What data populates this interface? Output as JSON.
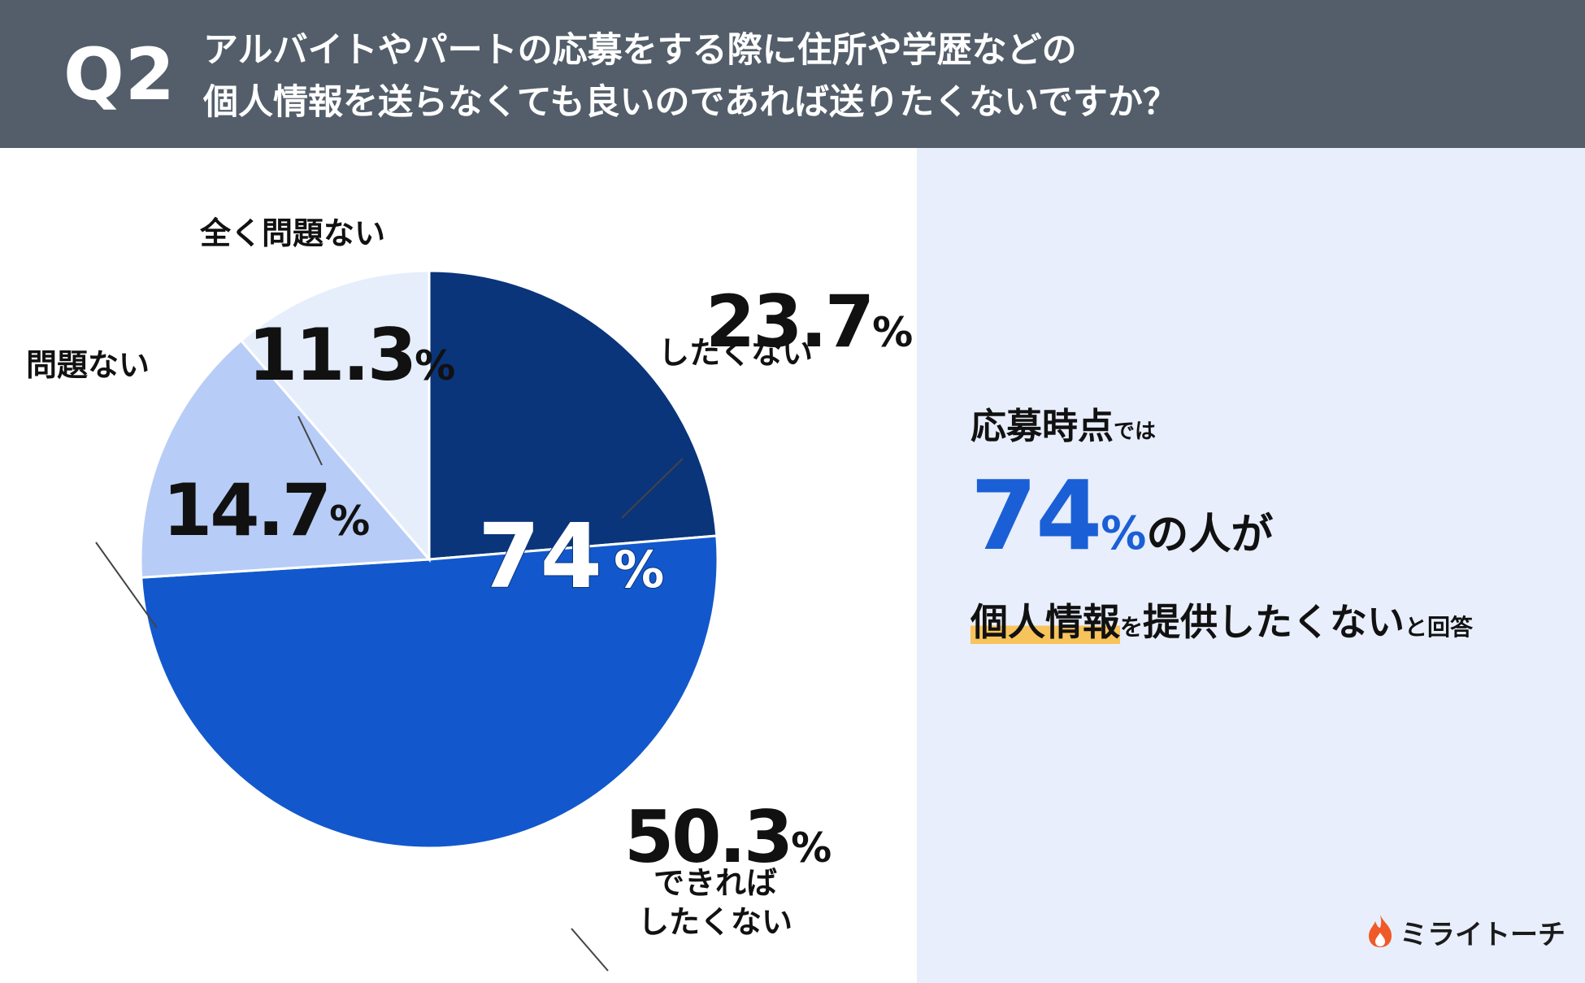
{
  "header": {
    "q_label": "Q2",
    "question_line1": "アルバイトやパートの応募をする際に住所や学歴などの",
    "question_line2": "個人情報を送らなくても良いのであれば送りたくないですか？"
  },
  "chart_data": {
    "type": "pie",
    "unit": "%",
    "slices": [
      {
        "label": "したくない",
        "value": 23.7,
        "value_text": "23.7",
        "color": "#0a357a"
      },
      {
        "label": "できれば\nしたくない",
        "value": 50.3,
        "value_text": "50.3",
        "color": "#1258cc"
      },
      {
        "label": "問題ない",
        "value": 14.7,
        "value_text": "14.7",
        "color": "#b7cdf7"
      },
      {
        "label": "全く問題ない",
        "value": 11.3,
        "value_text": "11.3",
        "color": "#e6eefc"
      }
    ],
    "center_label_value": "74",
    "center_label_unit": "%"
  },
  "summary": {
    "line1_main": "応募時点",
    "line1_small": "では",
    "line2_value": "74",
    "line2_unit": "%",
    "line2_rest": "の人が",
    "line3_highlight": "個人情報",
    "line3_small1": "を",
    "line3_main": "提供したくない",
    "line3_small2": "と回答"
  },
  "logo": {
    "text": "ミライトーチ",
    "icon": "flame-icon",
    "color": "#f05a28"
  },
  "colors": {
    "header_bg": "#535e6a",
    "panel_bg": "#e8eefb",
    "accent": "#1a5fd6",
    "highlight": "#f7c35c"
  }
}
